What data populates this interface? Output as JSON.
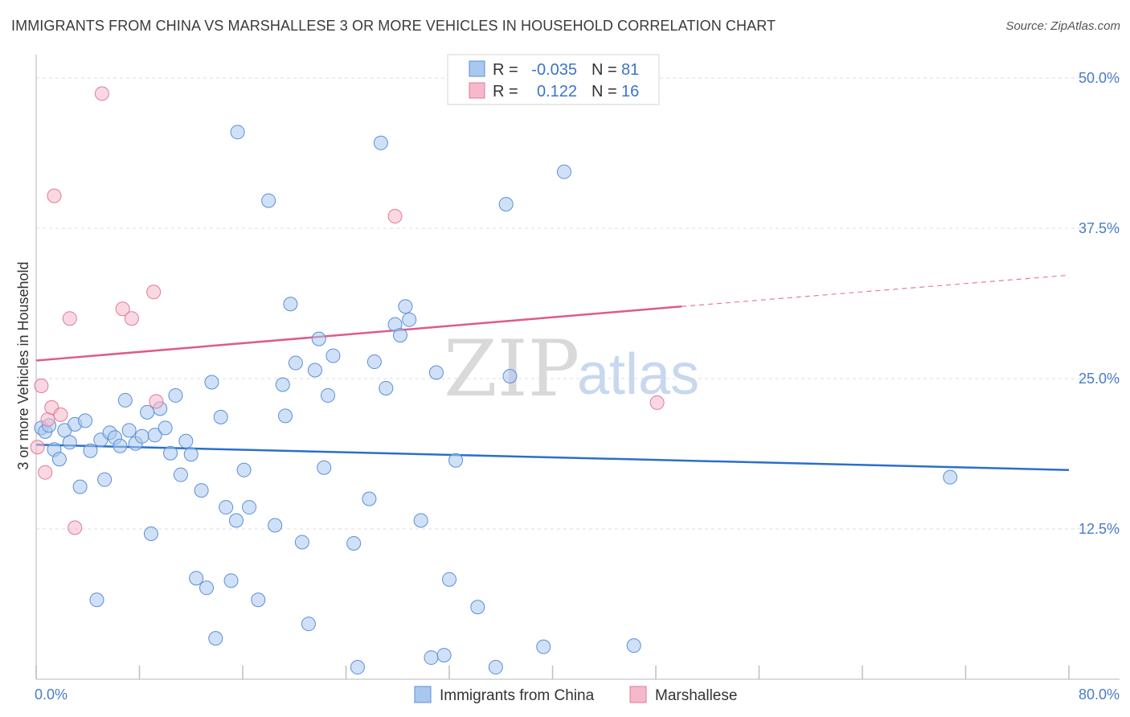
{
  "title": "IMMIGRANTS FROM CHINA VS MARSHALLESE 3 OR MORE VEHICLES IN HOUSEHOLD CORRELATION CHART",
  "source": "Source: ZipAtlas.com",
  "watermark": {
    "zip": "ZIP",
    "atlas": "atlas"
  },
  "stats_box": {
    "rows": [
      {
        "r_label": "R =",
        "r_value": "-0.035",
        "n_label": "N =",
        "n_value": "81",
        "color": "#a9c8f0"
      },
      {
        "r_label": "R =",
        "r_value": "0.122",
        "n_label": "N =",
        "n_value": "16",
        "color": "#f6b8cb"
      }
    ]
  },
  "chart_data": {
    "type": "scatter",
    "title": "IMMIGRANTS FROM CHINA VS MARSHALLESE 3 OR MORE VEHICLES IN HOUSEHOLD CORRELATION CHART",
    "xlabel": "",
    "ylabel": "3 or more Vehicles in Household",
    "xlim": [
      0,
      80
    ],
    "ylim": [
      0,
      50
    ],
    "x_tick_labels": [
      {
        "value": 0,
        "label": "0.0%"
      },
      {
        "value": 80,
        "label": "80.0%"
      }
    ],
    "y_tick_labels": [
      {
        "value": 12.5,
        "label": "12.5%"
      },
      {
        "value": 25,
        "label": "25.0%"
      },
      {
        "value": 37.5,
        "label": "37.5%"
      },
      {
        "value": 50,
        "label": "50.0%"
      }
    ],
    "grid": true,
    "legend_position": "bottom-center",
    "series": [
      {
        "name": "Immigrants from China",
        "color": "#a9c8f0",
        "stroke": "#5b8fd6",
        "trend_color": "#2a6fcc",
        "trend": {
          "x0": 0,
          "y0": 19.5,
          "x1": 80,
          "y1": 17.4
        },
        "points": [
          [
            0.4,
            20.9
          ],
          [
            0.7,
            20.6
          ],
          [
            1.0,
            21.1
          ],
          [
            1.4,
            19.1
          ],
          [
            1.8,
            18.3
          ],
          [
            2.2,
            20.7
          ],
          [
            2.6,
            19.7
          ],
          [
            3.0,
            21.2
          ],
          [
            3.4,
            16.0
          ],
          [
            3.8,
            21.5
          ],
          [
            4.2,
            19.0
          ],
          [
            4.7,
            6.6
          ],
          [
            5.0,
            19.9
          ],
          [
            5.3,
            16.6
          ],
          [
            5.7,
            20.5
          ],
          [
            6.1,
            20.1
          ],
          [
            6.5,
            19.4
          ],
          [
            6.9,
            23.2
          ],
          [
            7.2,
            20.7
          ],
          [
            7.7,
            19.6
          ],
          [
            8.2,
            20.2
          ],
          [
            8.6,
            22.2
          ],
          [
            8.9,
            12.1
          ],
          [
            9.2,
            20.3
          ],
          [
            9.6,
            22.5
          ],
          [
            10.0,
            20.9
          ],
          [
            10.4,
            18.8
          ],
          [
            10.8,
            23.6
          ],
          [
            11.2,
            17.0
          ],
          [
            11.6,
            19.8
          ],
          [
            12.0,
            18.7
          ],
          [
            12.4,
            8.4
          ],
          [
            12.8,
            15.7
          ],
          [
            13.2,
            7.6
          ],
          [
            13.6,
            24.7
          ],
          [
            13.9,
            3.4
          ],
          [
            14.3,
            21.8
          ],
          [
            14.7,
            14.3
          ],
          [
            15.1,
            8.2
          ],
          [
            15.6,
            45.5
          ],
          [
            15.5,
            13.2
          ],
          [
            16.1,
            17.4
          ],
          [
            16.5,
            14.3
          ],
          [
            17.2,
            6.6
          ],
          [
            18.0,
            39.8
          ],
          [
            18.5,
            12.8
          ],
          [
            19.1,
            24.5
          ],
          [
            19.3,
            21.9
          ],
          [
            19.7,
            31.2
          ],
          [
            20.1,
            26.3
          ],
          [
            20.6,
            11.4
          ],
          [
            21.1,
            4.6
          ],
          [
            21.6,
            25.7
          ],
          [
            21.9,
            28.3
          ],
          [
            22.3,
            17.6
          ],
          [
            22.6,
            23.6
          ],
          [
            23.0,
            26.9
          ],
          [
            24.6,
            11.3
          ],
          [
            24.9,
            1.0
          ],
          [
            25.8,
            15.0
          ],
          [
            26.2,
            26.4
          ],
          [
            26.7,
            44.6
          ],
          [
            27.1,
            24.2
          ],
          [
            27.8,
            29.5
          ],
          [
            28.2,
            28.6
          ],
          [
            28.6,
            31.0
          ],
          [
            28.9,
            29.9
          ],
          [
            29.8,
            13.2
          ],
          [
            30.6,
            1.8
          ],
          [
            31.0,
            25.5
          ],
          [
            31.6,
            2.0
          ],
          [
            32.0,
            8.3
          ],
          [
            32.5,
            18.2
          ],
          [
            34.2,
            6.0
          ],
          [
            35.6,
            1.0
          ],
          [
            36.4,
            39.5
          ],
          [
            36.7,
            25.2
          ],
          [
            39.3,
            2.7
          ],
          [
            40.9,
            42.2
          ],
          [
            46.3,
            2.8
          ],
          [
            70.8,
            16.8
          ]
        ]
      },
      {
        "name": "Marshallese",
        "color": "#f6b8cb",
        "stroke": "#e07a9a",
        "trend_color": "#e05a88",
        "trend": {
          "x0": 0,
          "y0": 26.5,
          "x1": 50,
          "y1": 31.0
        },
        "trend_dashed_extension": {
          "x0": 50,
          "y0": 31.0,
          "x1": 80,
          "y1": 33.6
        },
        "points": [
          [
            0.1,
            19.3
          ],
          [
            0.4,
            24.4
          ],
          [
            0.7,
            17.2
          ],
          [
            0.9,
            21.6
          ],
          [
            1.2,
            22.6
          ],
          [
            1.4,
            40.2
          ],
          [
            1.9,
            22.0
          ],
          [
            2.6,
            30.0
          ],
          [
            3.0,
            12.6
          ],
          [
            5.1,
            48.7
          ],
          [
            6.7,
            30.8
          ],
          [
            7.4,
            30.0
          ],
          [
            9.1,
            32.2
          ],
          [
            9.3,
            23.1
          ],
          [
            27.8,
            38.5
          ],
          [
            48.1,
            23.0
          ]
        ]
      }
    ]
  }
}
